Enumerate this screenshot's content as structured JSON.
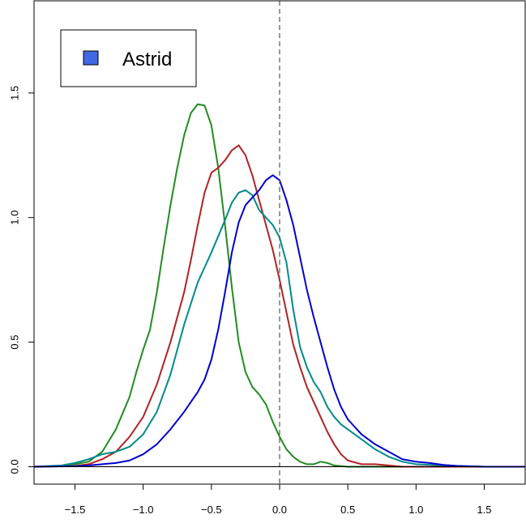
{
  "chart_data": {
    "type": "line",
    "title": "",
    "xlabel": "",
    "ylabel": "",
    "xlim": [
      -1.8,
      1.8
    ],
    "ylim": [
      -0.07,
      1.87
    ],
    "x_ticks": [
      -1.5,
      -1.0,
      -0.5,
      0.0,
      0.5,
      1.0,
      1.5
    ],
    "x_tick_labels": [
      "−1.5",
      "−1.0",
      "−0.5",
      "0.0",
      "0.5",
      "1.0",
      "1.5"
    ],
    "y_ticks": [
      0.0,
      0.5,
      1.0,
      1.5
    ],
    "y_tick_labels": [
      "0.0",
      "0.5",
      "1.0",
      "1.5"
    ],
    "reference_lines": [
      {
        "orientation": "vertical",
        "x": 0.0,
        "style": "dashed",
        "color": "#555555"
      },
      {
        "orientation": "horizontal",
        "y": 0.0,
        "style": "solid",
        "color": "#000000"
      }
    ],
    "legend": {
      "position": "top-left",
      "entries": [
        {
          "label": "Astrid",
          "color": "#4169e1"
        }
      ]
    },
    "grid": false,
    "series": [
      {
        "color": "#228b22",
        "points": [
          [
            -1.8,
            0.0
          ],
          [
            -1.6,
            0.003
          ],
          [
            -1.5,
            0.01
          ],
          [
            -1.4,
            0.02
          ],
          [
            -1.3,
            0.06
          ],
          [
            -1.2,
            0.15
          ],
          [
            -1.1,
            0.28
          ],
          [
            -1.05,
            0.38
          ],
          [
            -1.0,
            0.47
          ],
          [
            -0.95,
            0.55
          ],
          [
            -0.9,
            0.7
          ],
          [
            -0.85,
            0.88
          ],
          [
            -0.8,
            1.05
          ],
          [
            -0.75,
            1.2
          ],
          [
            -0.7,
            1.33
          ],
          [
            -0.65,
            1.42
          ],
          [
            -0.6,
            1.455
          ],
          [
            -0.55,
            1.45
          ],
          [
            -0.5,
            1.37
          ],
          [
            -0.45,
            1.2
          ],
          [
            -0.4,
            0.97
          ],
          [
            -0.35,
            0.72
          ],
          [
            -0.3,
            0.5
          ],
          [
            -0.25,
            0.38
          ],
          [
            -0.2,
            0.32
          ],
          [
            -0.15,
            0.29
          ],
          [
            -0.1,
            0.25
          ],
          [
            -0.05,
            0.18
          ],
          [
            0.0,
            0.12
          ],
          [
            0.05,
            0.07
          ],
          [
            0.1,
            0.04
          ],
          [
            0.15,
            0.02
          ],
          [
            0.2,
            0.01
          ],
          [
            0.25,
            0.01
          ],
          [
            0.3,
            0.02
          ],
          [
            0.35,
            0.015
          ],
          [
            0.4,
            0.005
          ],
          [
            0.5,
            0.0
          ],
          [
            1.8,
            0.0
          ]
        ]
      },
      {
        "color": "#b22222",
        "points": [
          [
            -1.8,
            0.0
          ],
          [
            -1.5,
            0.003
          ],
          [
            -1.4,
            0.01
          ],
          [
            -1.3,
            0.03
          ],
          [
            -1.2,
            0.06
          ],
          [
            -1.1,
            0.12
          ],
          [
            -1.0,
            0.2
          ],
          [
            -0.9,
            0.33
          ],
          [
            -0.8,
            0.5
          ],
          [
            -0.7,
            0.7
          ],
          [
            -0.65,
            0.83
          ],
          [
            -0.6,
            0.97
          ],
          [
            -0.55,
            1.1
          ],
          [
            -0.5,
            1.18
          ],
          [
            -0.45,
            1.2
          ],
          [
            -0.4,
            1.23
          ],
          [
            -0.35,
            1.27
          ],
          [
            -0.3,
            1.29
          ],
          [
            -0.25,
            1.25
          ],
          [
            -0.2,
            1.17
          ],
          [
            -0.15,
            1.07
          ],
          [
            -0.1,
            0.97
          ],
          [
            -0.05,
            0.87
          ],
          [
            0.0,
            0.75
          ],
          [
            0.05,
            0.62
          ],
          [
            0.1,
            0.49
          ],
          [
            0.15,
            0.4
          ],
          [
            0.2,
            0.32
          ],
          [
            0.25,
            0.26
          ],
          [
            0.3,
            0.2
          ],
          [
            0.35,
            0.14
          ],
          [
            0.4,
            0.09
          ],
          [
            0.45,
            0.05
          ],
          [
            0.5,
            0.025
          ],
          [
            0.6,
            0.01
          ],
          [
            0.7,
            0.01
          ],
          [
            0.8,
            0.005
          ],
          [
            0.9,
            0.0
          ],
          [
            1.8,
            0.0
          ]
        ]
      },
      {
        "color": "#008b8b",
        "points": [
          [
            -1.8,
            0.0
          ],
          [
            -1.6,
            0.005
          ],
          [
            -1.5,
            0.015
          ],
          [
            -1.4,
            0.03
          ],
          [
            -1.3,
            0.05
          ],
          [
            -1.2,
            0.06
          ],
          [
            -1.1,
            0.08
          ],
          [
            -1.0,
            0.13
          ],
          [
            -0.9,
            0.22
          ],
          [
            -0.8,
            0.37
          ],
          [
            -0.7,
            0.57
          ],
          [
            -0.6,
            0.74
          ],
          [
            -0.5,
            0.86
          ],
          [
            -0.4,
            0.99
          ],
          [
            -0.35,
            1.06
          ],
          [
            -0.3,
            1.1
          ],
          [
            -0.25,
            1.11
          ],
          [
            -0.2,
            1.09
          ],
          [
            -0.15,
            1.03
          ],
          [
            -0.1,
            1.0
          ],
          [
            -0.05,
            0.97
          ],
          [
            0.0,
            0.92
          ],
          [
            0.05,
            0.82
          ],
          [
            0.1,
            0.63
          ],
          [
            0.15,
            0.48
          ],
          [
            0.2,
            0.4
          ],
          [
            0.25,
            0.34
          ],
          [
            0.3,
            0.3
          ],
          [
            0.35,
            0.24
          ],
          [
            0.4,
            0.2
          ],
          [
            0.45,
            0.17
          ],
          [
            0.5,
            0.15
          ],
          [
            0.6,
            0.11
          ],
          [
            0.7,
            0.07
          ],
          [
            0.8,
            0.04
          ],
          [
            0.9,
            0.02
          ],
          [
            1.0,
            0.01
          ],
          [
            1.2,
            0.005
          ],
          [
            1.5,
            0.0
          ],
          [
            1.8,
            0.0
          ]
        ]
      },
      {
        "color": "#0000cd",
        "points": [
          [
            -1.8,
            0.0
          ],
          [
            -1.5,
            0.002
          ],
          [
            -1.4,
            0.005
          ],
          [
            -1.3,
            0.01
          ],
          [
            -1.2,
            0.015
          ],
          [
            -1.1,
            0.025
          ],
          [
            -1.0,
            0.05
          ],
          [
            -0.9,
            0.09
          ],
          [
            -0.8,
            0.15
          ],
          [
            -0.7,
            0.22
          ],
          [
            -0.65,
            0.26
          ],
          [
            -0.6,
            0.3
          ],
          [
            -0.55,
            0.35
          ],
          [
            -0.5,
            0.43
          ],
          [
            -0.45,
            0.55
          ],
          [
            -0.4,
            0.7
          ],
          [
            -0.35,
            0.86
          ],
          [
            -0.3,
            0.98
          ],
          [
            -0.25,
            1.05
          ],
          [
            -0.2,
            1.08
          ],
          [
            -0.15,
            1.11
          ],
          [
            -0.1,
            1.15
          ],
          [
            -0.05,
            1.17
          ],
          [
            0.0,
            1.15
          ],
          [
            0.05,
            1.07
          ],
          [
            0.1,
            0.97
          ],
          [
            0.15,
            0.84
          ],
          [
            0.2,
            0.71
          ],
          [
            0.25,
            0.6
          ],
          [
            0.3,
            0.5
          ],
          [
            0.35,
            0.4
          ],
          [
            0.4,
            0.31
          ],
          [
            0.45,
            0.24
          ],
          [
            0.5,
            0.19
          ],
          [
            0.6,
            0.13
          ],
          [
            0.7,
            0.09
          ],
          [
            0.8,
            0.06
          ],
          [
            0.9,
            0.03
          ],
          [
            1.0,
            0.02
          ],
          [
            1.1,
            0.015
          ],
          [
            1.2,
            0.007
          ],
          [
            1.3,
            0.003
          ],
          [
            1.5,
            0.0
          ],
          [
            1.8,
            0.0
          ]
        ]
      }
    ]
  }
}
